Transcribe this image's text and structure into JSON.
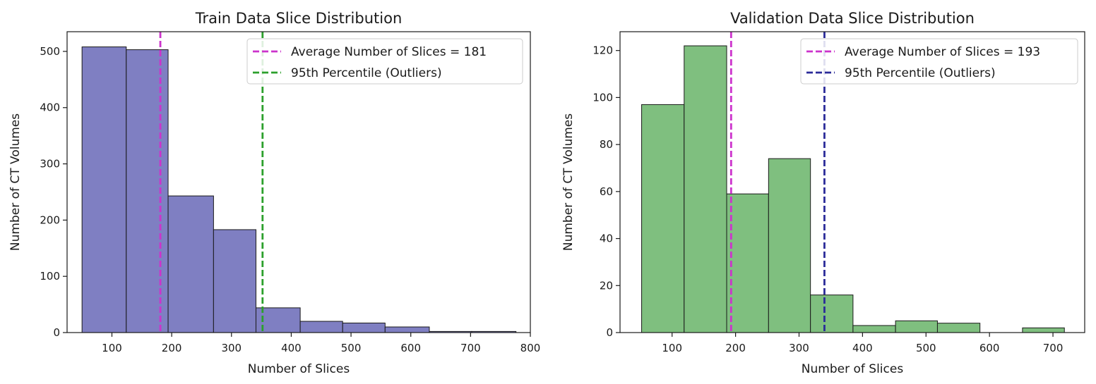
{
  "chart_data": [
    {
      "type": "bar",
      "title": "Train Data Slice Distribution",
      "xlabel": "Number of Slices",
      "ylabel": "Number of CT Volumes",
      "xlim": [
        25,
        800
      ],
      "ylim": [
        0,
        535
      ],
      "xticks": [
        100,
        200,
        300,
        400,
        500,
        600,
        700,
        800
      ],
      "yticks": [
        0,
        100,
        200,
        300,
        400,
        500
      ],
      "bar_color": "#7f7fc2",
      "bar_edge_color": "#1a1a1a",
      "bins": [
        {
          "x0": 50,
          "x1": 124,
          "value": 508
        },
        {
          "x0": 124,
          "x1": 194,
          "value": 503
        },
        {
          "x0": 194,
          "x1": 270,
          "value": 243
        },
        {
          "x0": 270,
          "x1": 341,
          "value": 183
        },
        {
          "x0": 341,
          "x1": 415,
          "value": 44
        },
        {
          "x0": 415,
          "x1": 486,
          "value": 20
        },
        {
          "x0": 486,
          "x1": 557,
          "value": 17
        },
        {
          "x0": 557,
          "x1": 631,
          "value": 10
        },
        {
          "x0": 631,
          "x1": 702,
          "value": 2
        },
        {
          "x0": 702,
          "x1": 776,
          "value": 2
        }
      ],
      "vlines": [
        {
          "x": 181,
          "color": "#cc33cc",
          "label": "Average Number of Slices = 181"
        },
        {
          "x": 352,
          "color": "#2ca02c",
          "label": "95th Percentile (Outliers)"
        }
      ],
      "legend": "top-right",
      "grid": false
    },
    {
      "type": "bar",
      "title": "Validation Data Slice Distribution",
      "xlabel": "Number of Slices",
      "ylabel": "Number of CT Volumes",
      "xlim": [
        18,
        750
      ],
      "ylim": [
        0,
        128
      ],
      "xticks": [
        100,
        200,
        300,
        400,
        500,
        600,
        700
      ],
      "yticks": [
        0,
        20,
        40,
        60,
        80,
        100,
        120
      ],
      "bar_color": "#7fbf7f",
      "bar_edge_color": "#1a1a1a",
      "bins": [
        {
          "x0": 52,
          "x1": 119,
          "value": 97
        },
        {
          "x0": 119,
          "x1": 186,
          "value": 122
        },
        {
          "x0": 186,
          "x1": 252,
          "value": 59
        },
        {
          "x0": 252,
          "x1": 318,
          "value": 74
        },
        {
          "x0": 318,
          "x1": 385,
          "value": 16
        },
        {
          "x0": 385,
          "x1": 452,
          "value": 3
        },
        {
          "x0": 452,
          "x1": 518,
          "value": 5
        },
        {
          "x0": 518,
          "x1": 585,
          "value": 4
        },
        {
          "x0": 585,
          "x1": 652,
          "value": 0
        },
        {
          "x0": 652,
          "x1": 718,
          "value": 2
        }
      ],
      "vlines": [
        {
          "x": 193,
          "color": "#cc33cc",
          "label": "Average Number of Slices = 193"
        },
        {
          "x": 340,
          "color": "#2b2b99",
          "label": "95th Percentile (Outliers)"
        }
      ],
      "legend": "top-right",
      "grid": false
    }
  ]
}
